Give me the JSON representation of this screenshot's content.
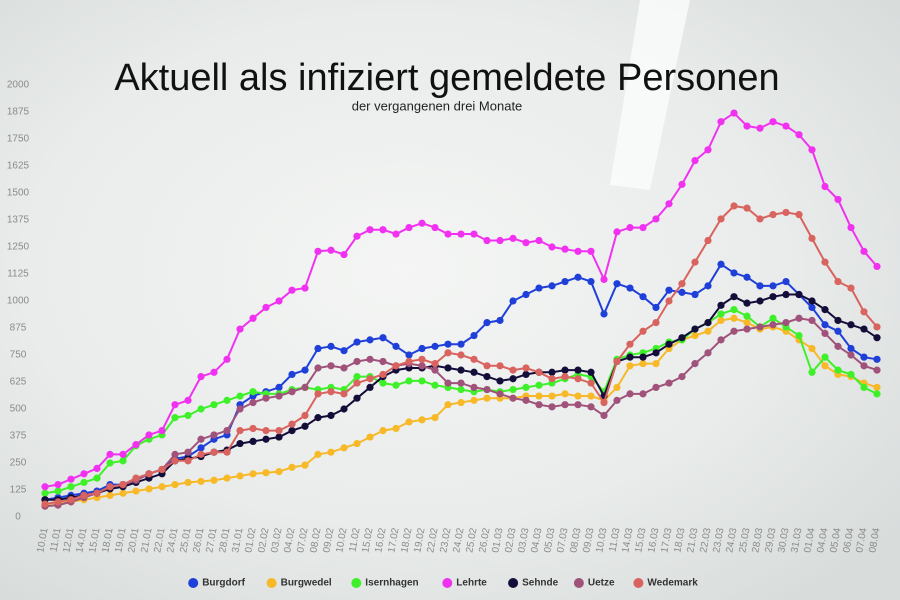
{
  "chart_data": {
    "type": "line",
    "title": "Aktuell als infiziert gemeldete Personen",
    "subtitle": "der vergangenen drei Monate",
    "categories": [
      "10.01",
      "11.01",
      "12.01",
      "14.01",
      "15.01",
      "18.01",
      "19.01",
      "20.01",
      "21.01",
      "22.01",
      "24.01",
      "25.01",
      "26.01",
      "27.01",
      "28.01",
      "31.01",
      "01.02",
      "02.02",
      "03.02",
      "04.02",
      "07.02",
      "08.02",
      "09.02",
      "10.02",
      "11.02",
      "15.02",
      "16.02",
      "17.02",
      "18.02",
      "19.02",
      "22.02",
      "23.02",
      "24.02",
      "25.02",
      "26.02",
      "01.03",
      "02.03",
      "03.03",
      "04.03",
      "05.03",
      "07.03",
      "08.03",
      "09.03",
      "10.03",
      "11.03",
      "14.03",
      "15.03",
      "16.03",
      "17.03",
      "18.03",
      "21.03",
      "22.03",
      "23.03",
      "24.03",
      "25.03",
      "28.03",
      "29.03",
      "30.03",
      "31.03",
      "01.04",
      "04.04",
      "05.04",
      "06.04",
      "07.04",
      "08.04"
    ],
    "ylim": [
      0,
      2000
    ],
    "yticks": [
      0,
      125,
      250,
      375,
      500,
      625,
      750,
      875,
      1000,
      1125,
      1250,
      1375,
      1500,
      1625,
      1750,
      1875,
      2000
    ],
    "grid": false,
    "legend": "bottom",
    "series": [
      {
        "name": "Burgdorf",
        "color": "#1f3fd9",
        "values": [
          80,
          90,
          100,
          110,
          120,
          150,
          150,
          170,
          200,
          220,
          270,
          280,
          320,
          360,
          380,
          520,
          560,
          580,
          600,
          660,
          680,
          780,
          790,
          770,
          810,
          820,
          830,
          790,
          750,
          780,
          790,
          800,
          800,
          840,
          900,
          910,
          1000,
          1030,
          1060,
          1070,
          1090,
          1110,
          1090,
          940,
          1080,
          1060,
          1020,
          970,
          1050,
          1040,
          1030,
          1070,
          1170,
          1130,
          1110,
          1070,
          1070,
          1090,
          1030,
          970,
          890,
          860,
          780,
          740,
          730
        ]
      },
      {
        "name": "Burgwedel",
        "color": "#f7b928",
        "values": [
          60,
          65,
          70,
          80,
          90,
          100,
          110,
          120,
          130,
          140,
          150,
          160,
          165,
          170,
          180,
          190,
          200,
          205,
          210,
          230,
          240,
          290,
          300,
          320,
          340,
          370,
          400,
          410,
          440,
          450,
          460,
          520,
          530,
          540,
          550,
          550,
          550,
          560,
          560,
          560,
          570,
          560,
          560,
          540,
          600,
          700,
          710,
          710,
          780,
          820,
          840,
          860,
          910,
          920,
          900,
          870,
          880,
          860,
          820,
          780,
          700,
          660,
          650,
          620,
          600
        ]
      },
      {
        "name": "Isernhagen",
        "color": "#3ef029",
        "values": [
          110,
          120,
          140,
          160,
          180,
          250,
          260,
          330,
          360,
          380,
          460,
          470,
          500,
          520,
          540,
          560,
          580,
          570,
          570,
          590,
          600,
          590,
          600,
          590,
          650,
          650,
          620,
          610,
          630,
          630,
          610,
          600,
          590,
          580,
          590,
          580,
          590,
          600,
          610,
          620,
          640,
          660,
          650,
          580,
          730,
          750,
          760,
          780,
          810,
          820,
          870,
          900,
          940,
          960,
          930,
          880,
          920,
          880,
          840,
          670,
          740,
          680,
          660,
          600,
          570
        ]
      },
      {
        "name": "Lehrte",
        "color": "#f032f0",
        "values": [
          140,
          150,
          175,
          200,
          225,
          290,
          290,
          335,
          380,
          400,
          520,
          540,
          650,
          670,
          730,
          870,
          920,
          970,
          1000,
          1050,
          1060,
          1230,
          1235,
          1215,
          1300,
          1330,
          1330,
          1310,
          1340,
          1360,
          1340,
          1310,
          1310,
          1310,
          1280,
          1280,
          1290,
          1270,
          1280,
          1250,
          1240,
          1230,
          1230,
          1100,
          1320,
          1340,
          1340,
          1380,
          1450,
          1540,
          1650,
          1700,
          1830,
          1870,
          1810,
          1800,
          1830,
          1810,
          1770,
          1700,
          1530,
          1470,
          1340,
          1230,
          1160
        ]
      },
      {
        "name": "Sehnde",
        "color": "#140d3a",
        "values": [
          80,
          80,
          90,
          100,
          110,
          130,
          140,
          160,
          180,
          200,
          260,
          270,
          280,
          300,
          310,
          340,
          350,
          360,
          370,
          400,
          420,
          460,
          470,
          500,
          550,
          600,
          650,
          680,
          690,
          690,
          700,
          690,
          680,
          670,
          650,
          630,
          640,
          660,
          670,
          670,
          680,
          680,
          670,
          560,
          720,
          740,
          740,
          760,
          800,
          830,
          870,
          900,
          980,
          1020,
          990,
          1000,
          1020,
          1030,
          1030,
          1000,
          960,
          910,
          890,
          870,
          830
        ]
      },
      {
        "name": "Uetze",
        "color": "#a0527a",
        "values": [
          50,
          55,
          70,
          90,
          110,
          140,
          150,
          170,
          200,
          220,
          290,
          300,
          360,
          380,
          400,
          500,
          530,
          550,
          560,
          580,
          600,
          690,
          700,
          690,
          720,
          730,
          720,
          700,
          710,
          700,
          680,
          620,
          620,
          600,
          590,
          570,
          550,
          540,
          520,
          510,
          520,
          520,
          510,
          470,
          540,
          570,
          570,
          600,
          620,
          650,
          710,
          760,
          820,
          860,
          870,
          880,
          890,
          900,
          920,
          910,
          850,
          790,
          750,
          700,
          680
        ]
      },
      {
        "name": "Wedemark",
        "color": "#d9635e",
        "values": [
          60,
          70,
          80,
          100,
          110,
          140,
          150,
          180,
          200,
          220,
          260,
          260,
          290,
          300,
          300,
          400,
          410,
          400,
          400,
          430,
          470,
          570,
          580,
          570,
          620,
          640,
          660,
          700,
          720,
          730,
          710,
          760,
          750,
          730,
          700,
          700,
          680,
          690,
          670,
          640,
          650,
          640,
          620,
          530,
          720,
          800,
          860,
          900,
          1000,
          1080,
          1180,
          1280,
          1380,
          1440,
          1430,
          1380,
          1400,
          1410,
          1400,
          1290,
          1180,
          1090,
          1060,
          950,
          880
        ]
      }
    ]
  }
}
